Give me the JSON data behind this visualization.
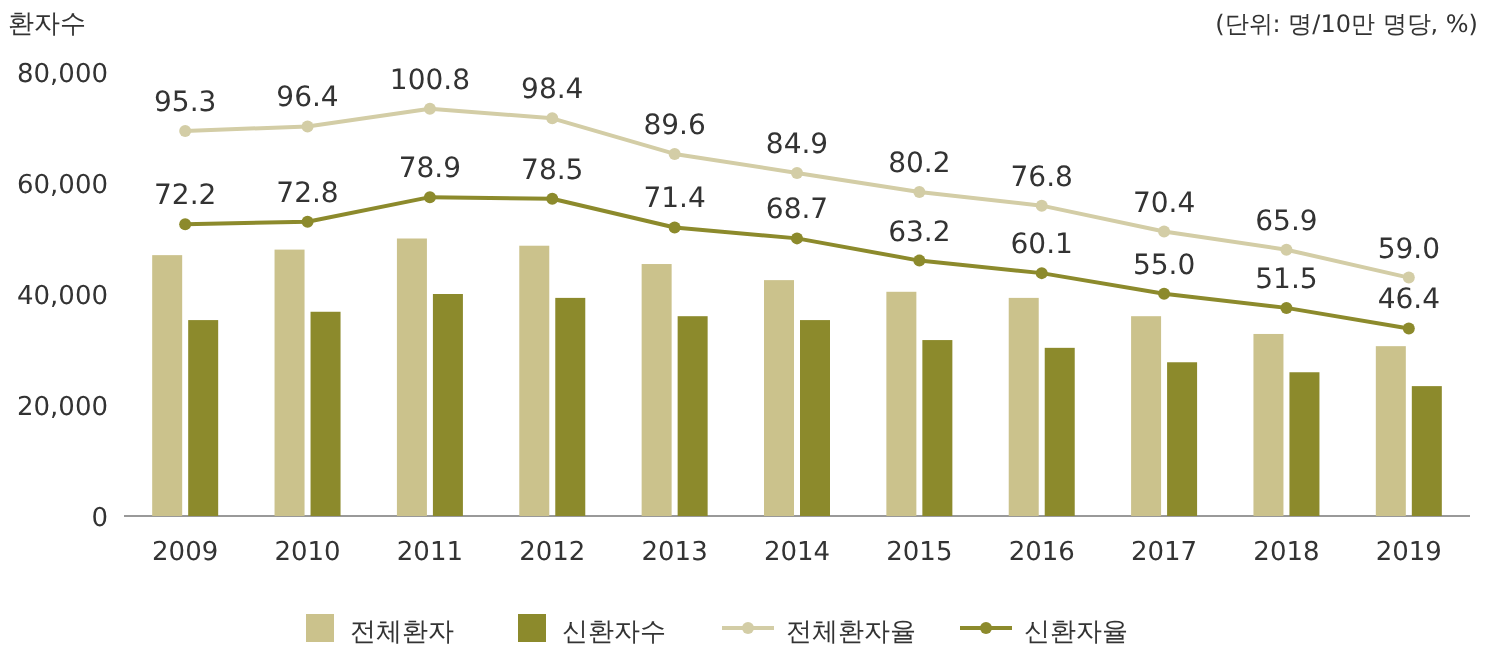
{
  "chart_data": {
    "type": "bar",
    "ylabel": "환자수",
    "annotations": [
      "(단위: 명/10만 명당, %)"
    ],
    "categories": [
      "2009",
      "2010",
      "2011",
      "2012",
      "2013",
      "2014",
      "2015",
      "2016",
      "2017",
      "2018",
      "2019"
    ],
    "series": [
      {
        "name": "전체환자",
        "color": "#cbc28c",
        "values": [
          47000,
          48000,
          50000,
          48700,
          45400,
          42500,
          40400,
          39300,
          36000,
          32800,
          30600
        ]
      },
      {
        "name": "신환자수",
        "color": "#8c8a2c",
        "values": [
          35300,
          36800,
          40000,
          39300,
          36000,
          35300,
          31700,
          30300,
          27700,
          25900,
          23400
        ]
      },
      {
        "name": "전체환자율",
        "type": "line",
        "axis": "y2",
        "color": "#d3cda6",
        "values": [
          95.3,
          96.4,
          100.8,
          98.4,
          89.6,
          84.9,
          80.2,
          76.8,
          70.4,
          65.9,
          59.0
        ],
        "value_labels": [
          "95.3",
          "96.4",
          "100.8",
          "98.4",
          "89.6",
          "84.9",
          "80.2",
          "76.8",
          "70.4",
          "65.9",
          "59.0"
        ]
      },
      {
        "name": "신환자율",
        "type": "line",
        "axis": "y2",
        "color": "#8c8a2c",
        "values": [
          72.2,
          72.8,
          78.9,
          78.5,
          71.4,
          68.7,
          63.2,
          60.1,
          55.0,
          51.5,
          46.4
        ],
        "value_labels": [
          "72.2",
          "72.8",
          "78.9",
          "78.5",
          "71.4",
          "68.7",
          "63.2",
          "60.1",
          "55.0",
          "51.5",
          "46.4"
        ]
      }
    ],
    "ylim": [
      0,
      80000
    ],
    "yticks": [
      {
        "value": 0,
        "label": "0"
      },
      {
        "value": 20000,
        "label": "20,000"
      },
      {
        "value": 40000,
        "label": "40,000"
      },
      {
        "value": 60000,
        "label": "60,000"
      },
      {
        "value": 80000,
        "label": "80,000"
      }
    ],
    "legend": "bottom",
    "marker": "circle"
  }
}
